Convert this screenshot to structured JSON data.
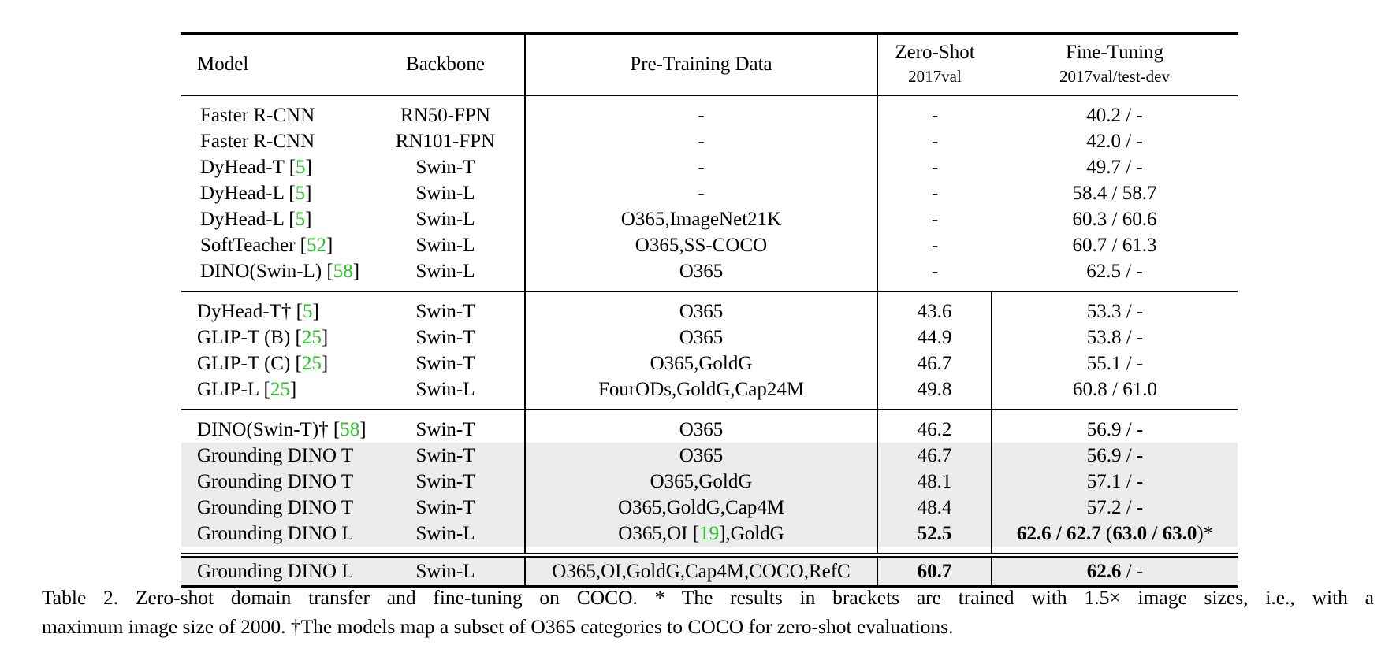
{
  "header": {
    "model": "Model",
    "backbone": "Backbone",
    "pretraining": "Pre-Training Data",
    "zeroshot": "Zero-Shot",
    "zeroshot_sub": "2017val",
    "finetune": "Fine-Tuning",
    "finetune_sub": "2017val/test-dev"
  },
  "group1": [
    {
      "model": "Faster R-CNN",
      "cite": "",
      "backbone": "RN50-FPN",
      "data": "-",
      "zs": "-",
      "ft": "40.2 / -"
    },
    {
      "model": "Faster R-CNN",
      "cite": "",
      "backbone": "RN101-FPN",
      "data": "-",
      "zs": "-",
      "ft": "42.0 / -"
    },
    {
      "model": "DyHead-T",
      "cite": "5",
      "backbone": "Swin-T",
      "data": "-",
      "zs": "-",
      "ft": "49.7 / -"
    },
    {
      "model": "DyHead-L",
      "cite": "5",
      "backbone": "Swin-L",
      "data": "-",
      "zs": "-",
      "ft": "58.4 / 58.7"
    },
    {
      "model": "DyHead-L",
      "cite": "5",
      "backbone": "Swin-L",
      "data": "O365,ImageNet21K",
      "zs": "-",
      "ft": "60.3 / 60.6"
    },
    {
      "model": "SoftTeacher",
      "cite": "52",
      "backbone": "Swin-L",
      "data": "O365,SS-COCO",
      "zs": "-",
      "ft": "60.7 / 61.3"
    },
    {
      "model": "DINO(Swin-L)",
      "cite": "58",
      "backbone": "Swin-L",
      "data": "O365",
      "zs": "-",
      "ft": "62.5 / -"
    }
  ],
  "group2": [
    {
      "model": "DyHead-T†",
      "cite": "5",
      "backbone": "Swin-T",
      "data": "O365",
      "zs": "43.6",
      "ft": "53.3 / -"
    },
    {
      "model": "GLIP-T (B)",
      "cite": "25",
      "backbone": "Swin-T",
      "data": "O365",
      "zs": "44.9",
      "ft": "53.8 / -"
    },
    {
      "model": "GLIP-T (C)",
      "cite": "25",
      "backbone": "Swin-T",
      "data": "O365,GoldG",
      "zs": "46.7",
      "ft": "55.1 / -"
    },
    {
      "model": "GLIP-L",
      "cite": "25",
      "backbone": "Swin-L",
      "data": "FourODs,GoldG,Cap24M",
      "zs": "49.8",
      "ft": "60.8 / 61.0"
    }
  ],
  "group3": [
    {
      "model": "DINO(Swin-T)†",
      "cite": "58",
      "backbone": "Swin-T",
      "data": "O365",
      "zs": "46.2",
      "ft": "56.9 / -"
    },
    {
      "model": "Grounding DINO T",
      "cite": "",
      "backbone": "Swin-T",
      "data": "O365",
      "zs": "46.7",
      "ft": "56.9 / -"
    },
    {
      "model": "Grounding DINO T",
      "cite": "",
      "backbone": "Swin-T",
      "data": "O365,GoldG",
      "zs": "48.1",
      "ft": "57.1 / -"
    },
    {
      "model": "Grounding DINO T",
      "cite": "",
      "backbone": "Swin-T",
      "data": "O365,GoldG,Cap4M",
      "zs": "48.4",
      "ft": "57.2 / -"
    },
    {
      "model": "Grounding DINO L",
      "cite": "",
      "backbone": "Swin-L",
      "data_pre": "O365,OI ",
      "data_cite": "19",
      "data_post": ",GoldG",
      "zs": "52.5",
      "ft_a": "62.6 / 62.7",
      "ft_b": " (",
      "ft_c": "63.0 / 63.0",
      "ft_d": ")*"
    }
  ],
  "group4": [
    {
      "model": "Grounding DINO L",
      "backbone": "Swin-L",
      "data": "O365,OI,GoldG,Cap4M,COCO,RefC",
      "zs": "60.7",
      "ft_a": "62.6",
      "ft_b": " / -"
    }
  ],
  "caption": {
    "line1": "Table 2.  Zero-shot domain transfer and fine-tuning on COCO. * The results in brackets are trained with 1.5× image sizes, i.e., with a",
    "line2": "maximum image size of 2000. †The models map a subset of O365 categories to COCO for zero-shot evaluations."
  }
}
